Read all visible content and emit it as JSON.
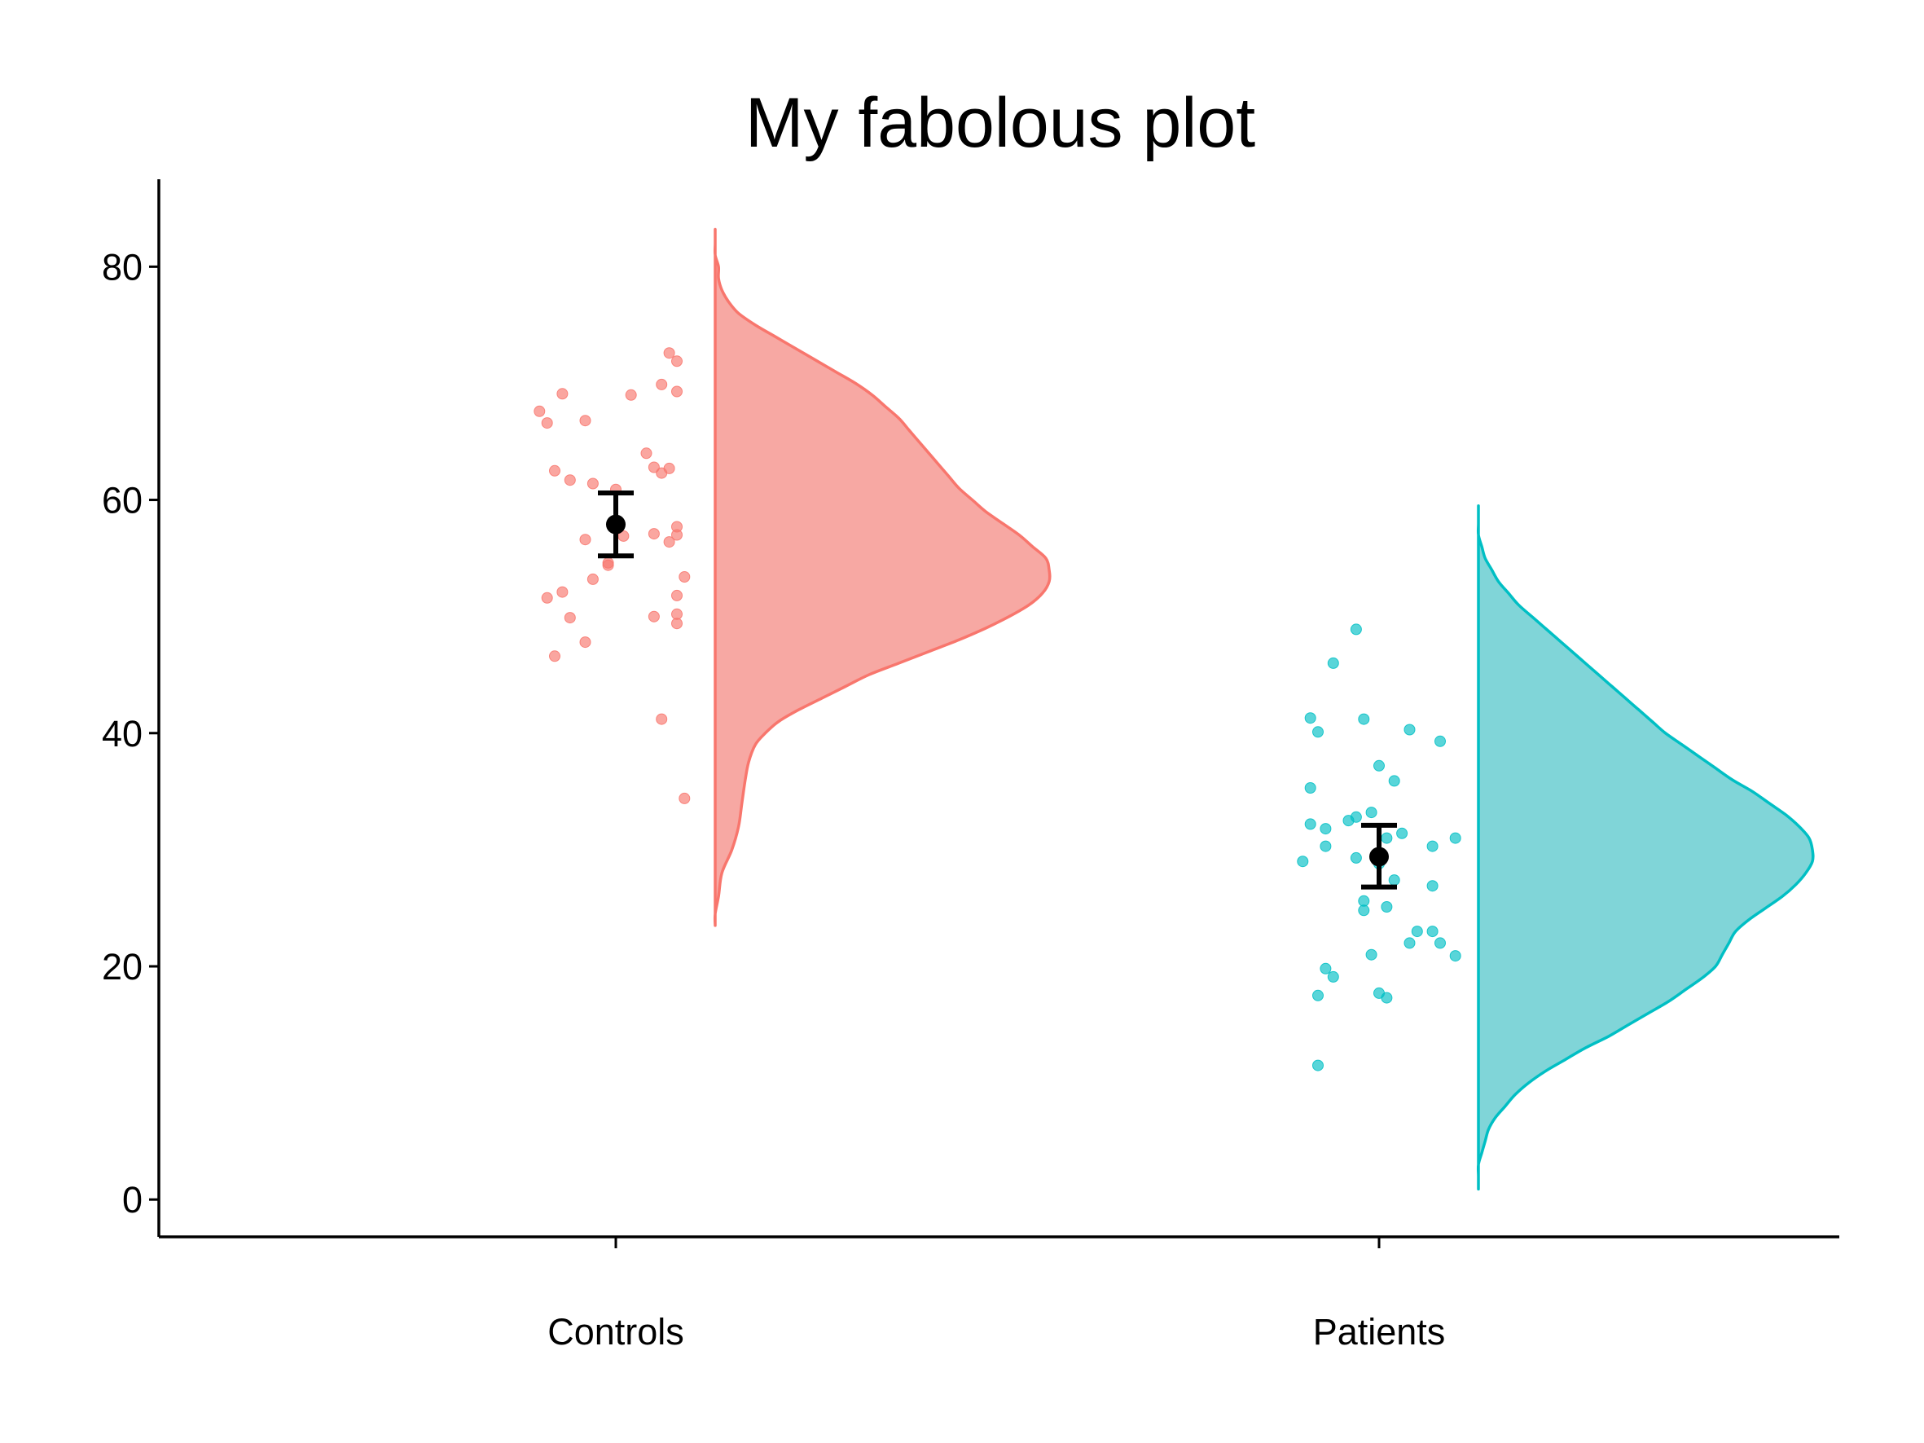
{
  "chart_data": {
    "type": "raincloud",
    "title": "My fabolous plot",
    "xlabel": "",
    "ylabel": "",
    "ylim": [
      -3.2,
      87.5
    ],
    "yticks": [
      0,
      20,
      40,
      60,
      80
    ],
    "grid": false,
    "legend": "none",
    "categories": [
      "Controls",
      "Patients"
    ],
    "groups": [
      {
        "category": "Controls",
        "color": "#F8766D",
        "fill": "#F7A8A3",
        "mean": 57.9,
        "ci": [
          55.2,
          60.6
        ],
        "points": [
          {
            "jitter": -0.1,
            "y": 67.6
          },
          {
            "jitter": -0.09,
            "y": 66.6
          },
          {
            "jitter": -0.07,
            "y": 69.1
          },
          {
            "jitter": -0.04,
            "y": 66.8
          },
          {
            "jitter": 0.02,
            "y": 69.0
          },
          {
            "jitter": 0.06,
            "y": 69.9
          },
          {
            "jitter": 0.07,
            "y": 72.6
          },
          {
            "jitter": 0.08,
            "y": 69.3
          },
          {
            "jitter": 0.08,
            "y": 71.9
          },
          {
            "jitter": -0.08,
            "y": 62.5
          },
          {
            "jitter": -0.06,
            "y": 61.7
          },
          {
            "jitter": -0.03,
            "y": 61.4
          },
          {
            "jitter": 0.0,
            "y": 60.9
          },
          {
            "jitter": 0.04,
            "y": 64.0
          },
          {
            "jitter": 0.05,
            "y": 62.8
          },
          {
            "jitter": 0.06,
            "y": 62.3
          },
          {
            "jitter": 0.07,
            "y": 62.7
          },
          {
            "jitter": -0.04,
            "y": 56.6
          },
          {
            "jitter": -0.01,
            "y": 54.6
          },
          {
            "jitter": -0.01,
            "y": 54.4
          },
          {
            "jitter": 0.01,
            "y": 56.9
          },
          {
            "jitter": 0.05,
            "y": 57.1
          },
          {
            "jitter": 0.07,
            "y": 56.4
          },
          {
            "jitter": 0.08,
            "y": 57.7
          },
          {
            "jitter": 0.08,
            "y": 57.0
          },
          {
            "jitter": -0.09,
            "y": 51.6
          },
          {
            "jitter": -0.07,
            "y": 52.1
          },
          {
            "jitter": -0.03,
            "y": 53.2
          },
          {
            "jitter": 0.09,
            "y": 53.4
          },
          {
            "jitter": 0.08,
            "y": 51.8
          },
          {
            "jitter": -0.06,
            "y": 49.9
          },
          {
            "jitter": 0.05,
            "y": 50.0
          },
          {
            "jitter": 0.08,
            "y": 50.2
          },
          {
            "jitter": 0.08,
            "y": 49.4
          },
          {
            "jitter": -0.08,
            "y": 46.6
          },
          {
            "jitter": -0.04,
            "y": 47.8
          },
          {
            "jitter": 0.06,
            "y": 41.2
          },
          {
            "jitter": 0.09,
            "y": 34.4
          }
        ],
        "density": {
          "y": [
            23.5,
            24.5,
            26.0,
            28.0,
            30.0,
            32.0,
            34.0,
            36.0,
            37.5,
            39.0,
            40.0,
            41.0,
            42.0,
            43.0,
            44.0,
            45.0,
            46.0,
            47.0,
            48.0,
            49.0,
            50.0,
            51.0,
            52.0,
            53.0,
            54.0,
            55.0,
            56.0,
            57.0,
            58.0,
            59.0,
            60.0,
            61.0,
            62.0,
            63.0,
            64.0,
            65.0,
            66.0,
            67.0,
            68.0,
            69.0,
            70.0,
            71.0,
            72.0,
            73.0,
            74.0,
            75.0,
            76.0,
            77.0,
            78.0,
            79.0,
            80.0,
            81.0,
            82.0,
            83.2
          ],
          "d": [
            0.0,
            0.0,
            0.01,
            0.02,
            0.05,
            0.07,
            0.08,
            0.09,
            0.1,
            0.12,
            0.15,
            0.19,
            0.25,
            0.32,
            0.39,
            0.46,
            0.55,
            0.64,
            0.73,
            0.81,
            0.88,
            0.94,
            0.98,
            1.0,
            1.0,
            0.99,
            0.95,
            0.91,
            0.86,
            0.81,
            0.77,
            0.73,
            0.7,
            0.67,
            0.64,
            0.61,
            0.58,
            0.55,
            0.51,
            0.47,
            0.42,
            0.36,
            0.3,
            0.24,
            0.18,
            0.12,
            0.07,
            0.04,
            0.02,
            0.01,
            0.01,
            0.0,
            0.0,
            0.0
          ]
        }
      },
      {
        "category": "Patients",
        "color": "#00BFC4",
        "fill": "#80D5D8",
        "mean": 29.4,
        "ci": [
          26.8,
          32.1
        ],
        "points": [
          {
            "jitter": -0.03,
            "y": 48.9
          },
          {
            "jitter": -0.06,
            "y": 46.0
          },
          {
            "jitter": -0.09,
            "y": 41.3
          },
          {
            "jitter": -0.08,
            "y": 40.1
          },
          {
            "jitter": -0.02,
            "y": 41.2
          },
          {
            "jitter": 0.04,
            "y": 40.3
          },
          {
            "jitter": 0.08,
            "y": 39.3
          },
          {
            "jitter": 0.0,
            "y": 37.2
          },
          {
            "jitter": 0.02,
            "y": 35.9
          },
          {
            "jitter": -0.09,
            "y": 35.3
          },
          {
            "jitter": -0.09,
            "y": 32.2
          },
          {
            "jitter": -0.07,
            "y": 31.8
          },
          {
            "jitter": -0.04,
            "y": 32.5
          },
          {
            "jitter": -0.03,
            "y": 32.8
          },
          {
            "jitter": -0.01,
            "y": 33.2
          },
          {
            "jitter": 0.01,
            "y": 31.0
          },
          {
            "jitter": 0.03,
            "y": 31.4
          },
          {
            "jitter": 0.07,
            "y": 30.3
          },
          {
            "jitter": 0.1,
            "y": 31.0
          },
          {
            "jitter": -0.07,
            "y": 30.3
          },
          {
            "jitter": -0.1,
            "y": 29.0
          },
          {
            "jitter": -0.03,
            "y": 29.3
          },
          {
            "jitter": 0.0,
            "y": 28.8
          },
          {
            "jitter": -0.02,
            "y": 25.6
          },
          {
            "jitter": -0.02,
            "y": 24.8
          },
          {
            "jitter": 0.01,
            "y": 25.1
          },
          {
            "jitter": 0.02,
            "y": 27.4
          },
          {
            "jitter": 0.07,
            "y": 26.9
          },
          {
            "jitter": 0.05,
            "y": 23.0
          },
          {
            "jitter": 0.07,
            "y": 23.0
          },
          {
            "jitter": 0.04,
            "y": 22.0
          },
          {
            "jitter": 0.08,
            "y": 22.0
          },
          {
            "jitter": 0.1,
            "y": 20.9
          },
          {
            "jitter": -0.01,
            "y": 21.0
          },
          {
            "jitter": -0.07,
            "y": 19.8
          },
          {
            "jitter": -0.06,
            "y": 19.1
          },
          {
            "jitter": -0.08,
            "y": 17.5
          },
          {
            "jitter": 0.0,
            "y": 17.7
          },
          {
            "jitter": 0.01,
            "y": 17.3
          },
          {
            "jitter": -0.08,
            "y": 11.5
          }
        ],
        "density": {
          "y": [
            0.9,
            2.0,
            3.0,
            4.0,
            5.0,
            6.0,
            7.0,
            8.0,
            9.0,
            10.0,
            11.0,
            12.0,
            13.0,
            14.0,
            15.0,
            16.0,
            17.0,
            18.0,
            19.0,
            20.0,
            21.0,
            22.0,
            23.0,
            24.0,
            25.0,
            26.0,
            27.0,
            28.0,
            29.0,
            30.0,
            31.0,
            32.0,
            33.0,
            34.0,
            35.0,
            36.0,
            37.0,
            38.0,
            39.0,
            40.0,
            41.0,
            42.0,
            43.0,
            44.0,
            45.0,
            46.0,
            47.0,
            48.0,
            49.0,
            50.0,
            51.0,
            52.0,
            53.0,
            54.0,
            55.0,
            56.0,
            57.0,
            58.0,
            59.5
          ],
          "d": [
            0.0,
            0.0,
            0.0,
            0.01,
            0.02,
            0.03,
            0.05,
            0.08,
            0.11,
            0.15,
            0.2,
            0.26,
            0.32,
            0.39,
            0.45,
            0.51,
            0.57,
            0.62,
            0.67,
            0.71,
            0.73,
            0.75,
            0.77,
            0.81,
            0.86,
            0.91,
            0.95,
            0.98,
            1.0,
            1.0,
            0.99,
            0.96,
            0.92,
            0.87,
            0.82,
            0.76,
            0.71,
            0.66,
            0.61,
            0.56,
            0.52,
            0.48,
            0.44,
            0.4,
            0.36,
            0.32,
            0.28,
            0.24,
            0.2,
            0.16,
            0.12,
            0.09,
            0.06,
            0.04,
            0.02,
            0.01,
            0.0,
            0.0,
            0.0
          ]
        }
      }
    ]
  }
}
